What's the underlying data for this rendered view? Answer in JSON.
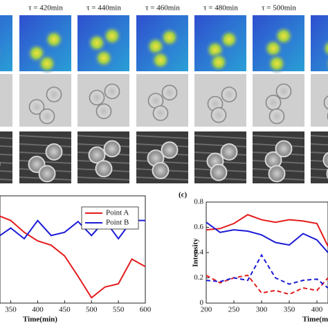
{
  "image_panel": {
    "labels": [
      "τ = 420min",
      "τ = 440min",
      "τ = 460min",
      "τ = 480min",
      "τ = 500min"
    ]
  },
  "panel_label": "(c)",
  "chart_data": [
    {
      "type": "line",
      "xlabel": "Time(min)",
      "legend": "upper right",
      "x": [
        330,
        350,
        375,
        400,
        425,
        450,
        475,
        500,
        525,
        550,
        575,
        600
      ],
      "series": [
        {
          "name": "Point A",
          "color": "#e41a1c",
          "style": "solid",
          "values": [
            0.81,
            0.77,
            0.66,
            0.58,
            0.54,
            0.44,
            0.25,
            0.05,
            0.15,
            0.18,
            0.41,
            0.34
          ]
        },
        {
          "name": "Point B",
          "color": "#1a1ad6",
          "style": "solid",
          "values": [
            0.63,
            0.7,
            0.6,
            0.77,
            0.63,
            0.66,
            0.76,
            0.63,
            0.77,
            0.6,
            0.77,
            0.77
          ]
        }
      ],
      "xlim": [
        330,
        600
      ],
      "ylim": [
        0,
        1
      ],
      "xticks": [
        350,
        400,
        450,
        500,
        550,
        600
      ]
    },
    {
      "type": "line",
      "xlabel": "Time(min)",
      "ylabel": "Intensity",
      "x": [
        200,
        225,
        250,
        275,
        300,
        325,
        350,
        375,
        400,
        420
      ],
      "series": [
        {
          "color": "#e41a1c",
          "style": "solid",
          "values": [
            0.58,
            0.59,
            0.63,
            0.7,
            0.66,
            0.64,
            0.66,
            0.65,
            0.63,
            0.45
          ]
        },
        {
          "color": "#1a1ad6",
          "style": "solid",
          "values": [
            0.64,
            0.56,
            0.58,
            0.57,
            0.54,
            0.48,
            0.46,
            0.55,
            0.5,
            0.4
          ]
        },
        {
          "color": "#e41a1c",
          "style": "dashed",
          "values": [
            0.22,
            0.16,
            0.2,
            0.22,
            0.08,
            0.1,
            0.07,
            0.12,
            0.1,
            0.2
          ]
        },
        {
          "color": "#1a1ad6",
          "style": "dashed",
          "values": [
            0.18,
            0.17,
            0.2,
            0.18,
            0.38,
            0.2,
            0.15,
            0.18,
            0.19,
            0.12
          ]
        }
      ],
      "xlim": [
        200,
        420
      ],
      "ylim": [
        0,
        0.8
      ],
      "xticks": [
        200,
        250,
        300,
        350,
        400
      ],
      "yticks": [
        0,
        0.2,
        0.4,
        0.6,
        0.8
      ]
    }
  ]
}
